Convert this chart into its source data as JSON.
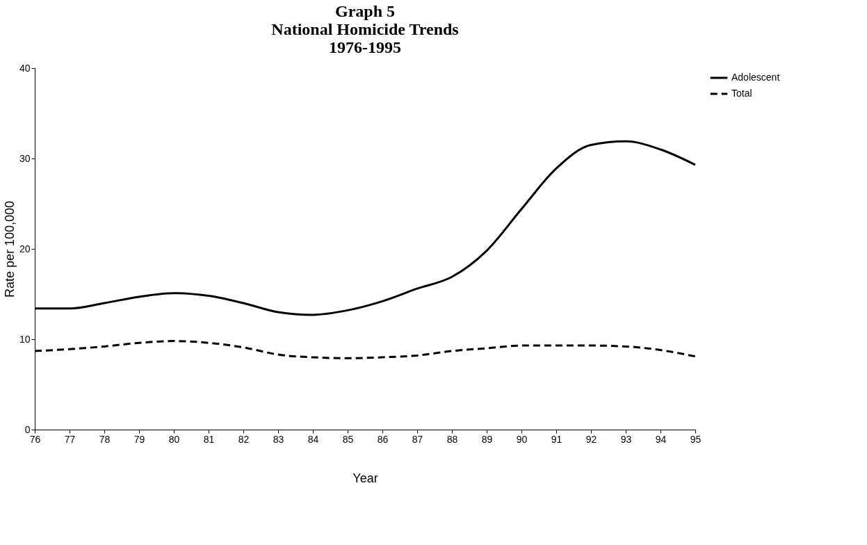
{
  "chart_data": {
    "type": "line",
    "title": [
      "Graph 5",
      "National Homicide Trends",
      "1976-1995"
    ],
    "xlabel": "Year",
    "ylabel": "Rate per 100,000",
    "categories": [
      "76",
      "77",
      "78",
      "79",
      "80",
      "81",
      "82",
      "83",
      "84",
      "85",
      "86",
      "87",
      "88",
      "89",
      "90",
      "91",
      "92",
      "93",
      "94",
      "95"
    ],
    "series": [
      {
        "name": "Adolescent",
        "color": "#000000",
        "line_style": "solid",
        "values": [
          13.4,
          13.4,
          14.0,
          14.7,
          15.1,
          14.8,
          14.0,
          13.0,
          12.7,
          13.2,
          14.2,
          15.6,
          16.9,
          19.8,
          24.4,
          28.9,
          31.5,
          31.9,
          31.0,
          29.3
        ]
      },
      {
        "name": "Total",
        "color": "#000000",
        "line_style": "dashed",
        "values": [
          8.7,
          8.9,
          9.2,
          9.6,
          9.8,
          9.6,
          9.1,
          8.3,
          8.0,
          7.9,
          8.0,
          8.2,
          8.7,
          9.0,
          9.3,
          9.3,
          9.3,
          9.2,
          8.8,
          8.1
        ]
      }
    ],
    "ylim": [
      0,
      40
    ],
    "yticks": [
      0,
      10,
      20,
      30,
      40
    ],
    "grid": false,
    "legend": "right",
    "marker": "none"
  }
}
